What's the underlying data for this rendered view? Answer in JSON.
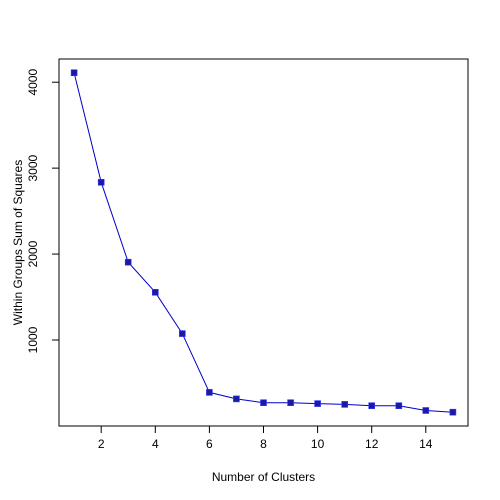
{
  "chart_data": {
    "type": "line",
    "title": "",
    "xlabel": "Number of Clusters",
    "ylabel": "Within Groups Sum of Squares",
    "x": [
      1,
      2,
      3,
      4,
      5,
      6,
      7,
      8,
      9,
      10,
      11,
      12,
      13,
      14,
      15
    ],
    "series": [
      {
        "values": [
          4110,
          2835,
          1905,
          1555,
          1075,
          390,
          315,
          270,
          270,
          260,
          250,
          235,
          235,
          180,
          160
        ]
      }
    ],
    "xlim": [
      0.44,
      15.56
    ],
    "ylim": [
      -0.8,
      4270
    ],
    "xticks": [
      2,
      4,
      6,
      8,
      10,
      12,
      14
    ],
    "yticks": [
      1000,
      2000,
      3000,
      4000
    ],
    "grid": false,
    "colors": {
      "line": "#0000cc",
      "marker": "#1a1aa6",
      "axis": "#000000"
    }
  }
}
